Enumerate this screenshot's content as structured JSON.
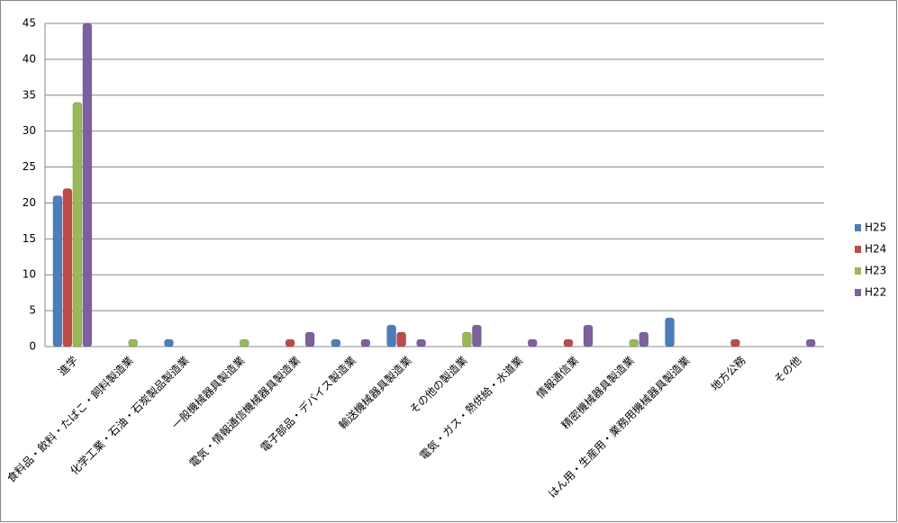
{
  "chart_data": {
    "type": "bar",
    "categories": [
      "進学",
      "食料品・飲料・たばこ・飼料製造業",
      "化学工業・石油・石炭製品製造業",
      "一般機械器具製造業",
      "電気・情報通信機械器具製造業",
      "電子部品・デバイス製造業",
      "輸送機械器具製造業",
      "その他の製造業",
      "電気・ガス・熱供給・水道業",
      "情報通信業",
      "精密機械器具製造業",
      "はん用・生産用・業務用機械器具製造業",
      "地方公務",
      "その他"
    ],
    "series": [
      {
        "name": "H25",
        "color": "#4a7ebb",
        "values": [
          21,
          0,
          1,
          0,
          0,
          1,
          3,
          0,
          0,
          0,
          0,
          4,
          0,
          0
        ]
      },
      {
        "name": "H24",
        "color": "#be4b48",
        "values": [
          22,
          0,
          0,
          0,
          1,
          0,
          2,
          0,
          0,
          1,
          0,
          0,
          1,
          0
        ]
      },
      {
        "name": "H23",
        "color": "#98b954",
        "values": [
          34,
          1,
          0,
          1,
          0,
          0,
          0,
          2,
          0,
          0,
          1,
          0,
          0,
          0
        ]
      },
      {
        "name": "H22",
        "color": "#7d60a0",
        "values": [
          45,
          0,
          0,
          0,
          2,
          1,
          1,
          3,
          1,
          3,
          2,
          0,
          0,
          1
        ]
      }
    ],
    "ylim": [
      0,
      45
    ],
    "yticks": [
      0,
      5,
      10,
      15,
      20,
      25,
      30,
      35,
      40,
      45
    ],
    "grid": true,
    "legend": "right"
  }
}
